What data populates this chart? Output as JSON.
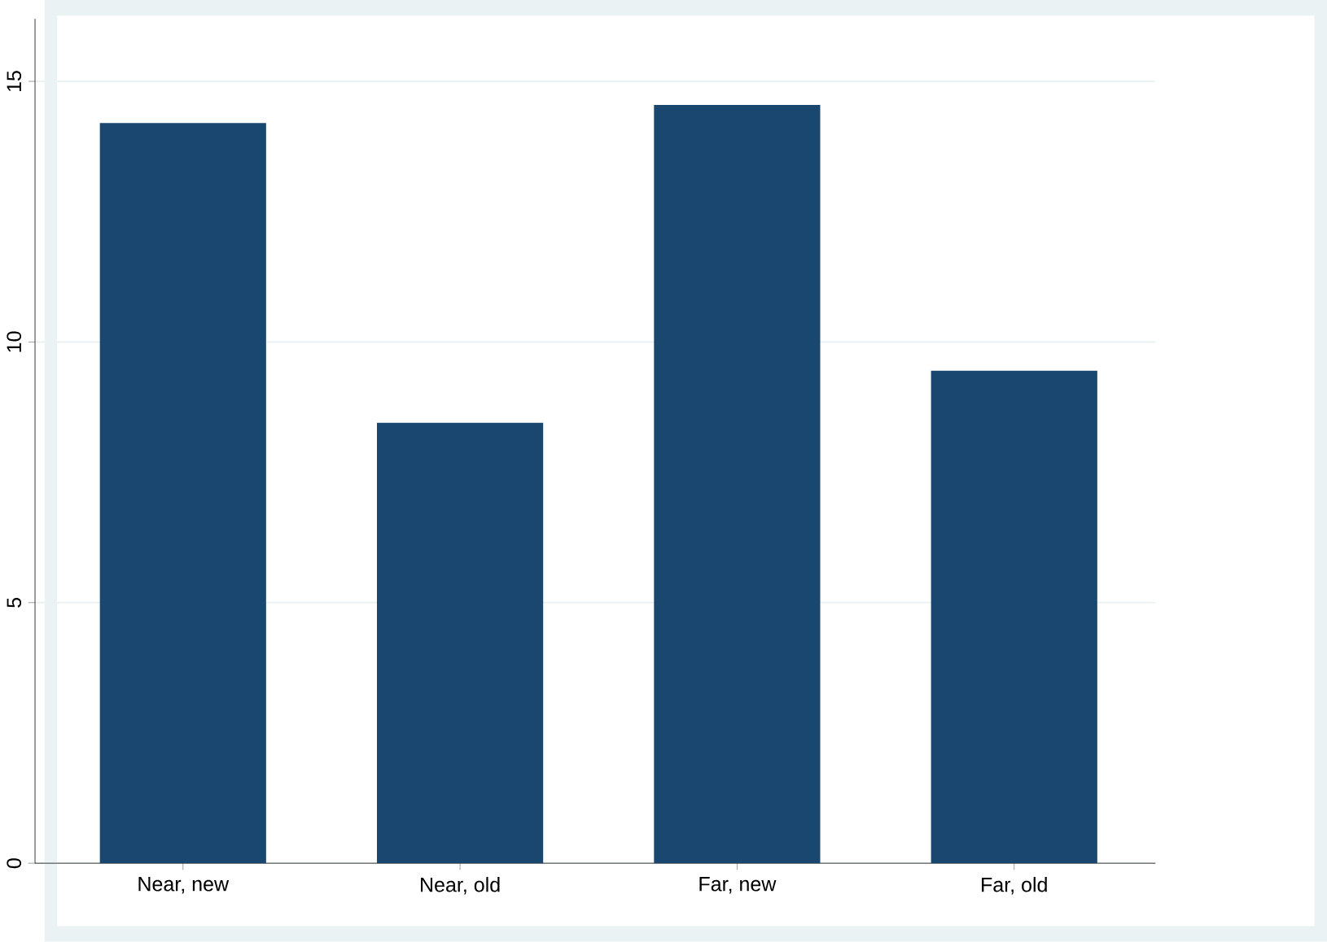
{
  "chart_data": {
    "type": "bar",
    "categories": [
      "Near, new",
      "Near, old",
      "Far, new",
      "Far, old"
    ],
    "values": [
      14.2,
      8.45,
      14.55,
      9.45
    ],
    "color": "#1a476f",
    "ylim": [
      0,
      16.2
    ],
    "yticks": [
      0,
      5,
      10,
      15
    ],
    "grid": "y"
  }
}
